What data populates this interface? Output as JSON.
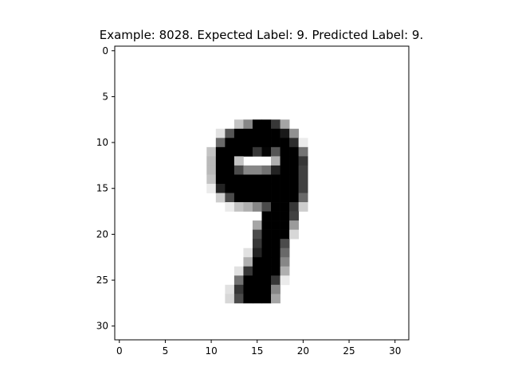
{
  "title": "Example: 8028. Expected Label: 9. Predicted Label: 9.",
  "chart_data": {
    "type": "heatmap",
    "title": "Example: 8028. Expected Label: 9. Predicted Label: 9.",
    "xlabel": "",
    "ylabel": "",
    "xlim": [
      -0.5,
      31.5
    ],
    "ylim": [
      31.5,
      -0.5
    ],
    "x_ticks": [
      0,
      5,
      10,
      15,
      20,
      25,
      30
    ],
    "y_ticks": [
      0,
      5,
      10,
      15,
      20,
      25,
      30
    ],
    "colormap": "gray_r",
    "value_range": [
      0,
      255
    ],
    "grid": false,
    "rows": [
      [
        0,
        0,
        0,
        0,
        0,
        0,
        0,
        0,
        0,
        0,
        0,
        0,
        0,
        0,
        0,
        0,
        0,
        0,
        0,
        0,
        0,
        0,
        0,
        0,
        0,
        0,
        0,
        0,
        0,
        0,
        0,
        0
      ],
      [
        0,
        0,
        0,
        0,
        0,
        0,
        0,
        0,
        0,
        0,
        0,
        0,
        0,
        0,
        0,
        0,
        0,
        0,
        0,
        0,
        0,
        0,
        0,
        0,
        0,
        0,
        0,
        0,
        0,
        0,
        0,
        0
      ],
      [
        0,
        0,
        0,
        0,
        0,
        0,
        0,
        0,
        0,
        0,
        0,
        0,
        0,
        0,
        0,
        0,
        0,
        0,
        0,
        0,
        0,
        0,
        0,
        0,
        0,
        0,
        0,
        0,
        0,
        0,
        0,
        0
      ],
      [
        0,
        0,
        0,
        0,
        0,
        0,
        0,
        0,
        0,
        0,
        0,
        0,
        0,
        0,
        0,
        0,
        0,
        0,
        0,
        0,
        0,
        0,
        0,
        0,
        0,
        0,
        0,
        0,
        0,
        0,
        0,
        0
      ],
      [
        0,
        0,
        0,
        0,
        0,
        0,
        0,
        0,
        0,
        0,
        0,
        0,
        0,
        0,
        0,
        0,
        0,
        0,
        0,
        0,
        0,
        0,
        0,
        0,
        0,
        0,
        0,
        0,
        0,
        0,
        0,
        0
      ],
      [
        0,
        0,
        0,
        0,
        0,
        0,
        0,
        0,
        0,
        0,
        0,
        0,
        0,
        0,
        0,
        0,
        0,
        0,
        0,
        0,
        0,
        0,
        0,
        0,
        0,
        0,
        0,
        0,
        0,
        0,
        0,
        0
      ],
      [
        0,
        0,
        0,
        0,
        0,
        0,
        0,
        0,
        0,
        0,
        0,
        0,
        0,
        0,
        0,
        0,
        0,
        0,
        0,
        0,
        0,
        0,
        0,
        0,
        0,
        0,
        0,
        0,
        0,
        0,
        0,
        0
      ],
      [
        0,
        0,
        0,
        0,
        0,
        0,
        0,
        0,
        0,
        0,
        0,
        0,
        0,
        0,
        0,
        0,
        0,
        0,
        0,
        0,
        0,
        0,
        0,
        0,
        0,
        0,
        0,
        0,
        0,
        0,
        0,
        0
      ],
      [
        0,
        0,
        0,
        0,
        0,
        0,
        0,
        0,
        0,
        0,
        0,
        0,
        0,
        60,
        120,
        255,
        255,
        200,
        90,
        0,
        0,
        0,
        0,
        0,
        0,
        0,
        0,
        0,
        0,
        0,
        0,
        0
      ],
      [
        0,
        0,
        0,
        0,
        0,
        0,
        0,
        0,
        0,
        0,
        0,
        30,
        170,
        255,
        255,
        255,
        255,
        255,
        230,
        110,
        0,
        0,
        0,
        0,
        0,
        0,
        0,
        0,
        0,
        0,
        0,
        0
      ],
      [
        0,
        0,
        0,
        0,
        0,
        0,
        0,
        0,
        0,
        0,
        0,
        150,
        255,
        255,
        255,
        255,
        255,
        255,
        255,
        210,
        20,
        0,
        0,
        0,
        0,
        0,
        0,
        0,
        0,
        0,
        0,
        0
      ],
      [
        0,
        0,
        0,
        0,
        0,
        0,
        0,
        0,
        0,
        0,
        60,
        255,
        255,
        255,
        255,
        200,
        250,
        170,
        255,
        255,
        140,
        0,
        0,
        0,
        0,
        0,
        0,
        0,
        0,
        0,
        0,
        0
      ],
      [
        0,
        0,
        0,
        0,
        0,
        0,
        0,
        0,
        0,
        0,
        70,
        255,
        255,
        60,
        0,
        0,
        0,
        80,
        255,
        255,
        200,
        0,
        0,
        0,
        0,
        0,
        0,
        0,
        0,
        0,
        0,
        0
      ],
      [
        0,
        0,
        0,
        0,
        0,
        0,
        0,
        0,
        0,
        0,
        70,
        255,
        255,
        180,
        120,
        120,
        140,
        220,
        255,
        255,
        190,
        0,
        0,
        0,
        0,
        0,
        0,
        0,
        0,
        0,
        0,
        0
      ],
      [
        0,
        0,
        0,
        0,
        0,
        0,
        0,
        0,
        0,
        0,
        60,
        255,
        255,
        255,
        255,
        255,
        255,
        255,
        255,
        255,
        190,
        0,
        0,
        0,
        0,
        0,
        0,
        0,
        0,
        0,
        0,
        0
      ],
      [
        0,
        0,
        0,
        0,
        0,
        0,
        0,
        0,
        0,
        0,
        20,
        220,
        255,
        255,
        255,
        255,
        255,
        255,
        255,
        255,
        190,
        0,
        0,
        0,
        0,
        0,
        0,
        0,
        0,
        0,
        0,
        0
      ],
      [
        0,
        0,
        0,
        0,
        0,
        0,
        0,
        0,
        0,
        0,
        0,
        50,
        180,
        255,
        255,
        255,
        255,
        255,
        255,
        255,
        150,
        0,
        0,
        0,
        0,
        0,
        0,
        0,
        0,
        0,
        0,
        0
      ],
      [
        0,
        0,
        0,
        0,
        0,
        0,
        0,
        0,
        0,
        0,
        0,
        0,
        20,
        60,
        80,
        120,
        180,
        255,
        255,
        200,
        50,
        0,
        0,
        0,
        0,
        0,
        0,
        0,
        0,
        0,
        0,
        0
      ],
      [
        0,
        0,
        0,
        0,
        0,
        0,
        0,
        0,
        0,
        0,
        0,
        0,
        0,
        0,
        0,
        0,
        255,
        255,
        255,
        190,
        0,
        0,
        0,
        0,
        0,
        0,
        0,
        0,
        0,
        0,
        0,
        0
      ],
      [
        0,
        0,
        0,
        0,
        0,
        0,
        0,
        0,
        0,
        0,
        0,
        0,
        0,
        0,
        0,
        90,
        255,
        255,
        255,
        100,
        0,
        0,
        0,
        0,
        0,
        0,
        0,
        0,
        0,
        0,
        0,
        0
      ],
      [
        0,
        0,
        0,
        0,
        0,
        0,
        0,
        0,
        0,
        0,
        0,
        0,
        0,
        0,
        0,
        180,
        255,
        255,
        255,
        40,
        0,
        0,
        0,
        0,
        0,
        0,
        0,
        0,
        0,
        0,
        0,
        0
      ],
      [
        0,
        0,
        0,
        0,
        0,
        0,
        0,
        0,
        0,
        0,
        0,
        0,
        0,
        0,
        0,
        200,
        255,
        255,
        180,
        0,
        0,
        0,
        0,
        0,
        0,
        0,
        0,
        0,
        0,
        0,
        0,
        0
      ],
      [
        0,
        0,
        0,
        0,
        0,
        0,
        0,
        0,
        0,
        0,
        0,
        0,
        0,
        0,
        30,
        220,
        255,
        255,
        150,
        0,
        0,
        0,
        0,
        0,
        0,
        0,
        0,
        0,
        0,
        0,
        0,
        0
      ],
      [
        0,
        0,
        0,
        0,
        0,
        0,
        0,
        0,
        0,
        0,
        0,
        0,
        0,
        0,
        80,
        255,
        255,
        255,
        120,
        0,
        0,
        0,
        0,
        0,
        0,
        0,
        0,
        0,
        0,
        0,
        0,
        0
      ],
      [
        0,
        0,
        0,
        0,
        0,
        0,
        0,
        0,
        0,
        0,
        0,
        0,
        0,
        30,
        200,
        255,
        255,
        255,
        80,
        0,
        0,
        0,
        0,
        0,
        0,
        0,
        0,
        0,
        0,
        0,
        0,
        0
      ],
      [
        0,
        0,
        0,
        0,
        0,
        0,
        0,
        0,
        0,
        0,
        0,
        0,
        0,
        140,
        255,
        255,
        255,
        200,
        20,
        0,
        0,
        0,
        0,
        0,
        0,
        0,
        0,
        0,
        0,
        0,
        0,
        0
      ],
      [
        0,
        0,
        0,
        0,
        0,
        0,
        0,
        0,
        0,
        0,
        0,
        0,
        30,
        200,
        255,
        255,
        255,
        120,
        0,
        0,
        0,
        0,
        0,
        0,
        0,
        0,
        0,
        0,
        0,
        0,
        0,
        0
      ],
      [
        0,
        0,
        0,
        0,
        0,
        0,
        0,
        0,
        0,
        0,
        0,
        0,
        40,
        180,
        255,
        255,
        255,
        90,
        0,
        0,
        0,
        0,
        0,
        0,
        0,
        0,
        0,
        0,
        0,
        0,
        0,
        0
      ],
      [
        0,
        0,
        0,
        0,
        0,
        0,
        0,
        0,
        0,
        0,
        0,
        0,
        0,
        0,
        0,
        0,
        0,
        0,
        0,
        0,
        0,
        0,
        0,
        0,
        0,
        0,
        0,
        0,
        0,
        0,
        0,
        0
      ],
      [
        0,
        0,
        0,
        0,
        0,
        0,
        0,
        0,
        0,
        0,
        0,
        0,
        0,
        0,
        0,
        0,
        0,
        0,
        0,
        0,
        0,
        0,
        0,
        0,
        0,
        0,
        0,
        0,
        0,
        0,
        0,
        0
      ],
      [
        0,
        0,
        0,
        0,
        0,
        0,
        0,
        0,
        0,
        0,
        0,
        0,
        0,
        0,
        0,
        0,
        0,
        0,
        0,
        0,
        0,
        0,
        0,
        0,
        0,
        0,
        0,
        0,
        0,
        0,
        0,
        0
      ],
      [
        0,
        0,
        0,
        0,
        0,
        0,
        0,
        0,
        0,
        0,
        0,
        0,
        0,
        0,
        0,
        0,
        0,
        0,
        0,
        0,
        0,
        0,
        0,
        0,
        0,
        0,
        0,
        0,
        0,
        0,
        0,
        0
      ]
    ]
  }
}
